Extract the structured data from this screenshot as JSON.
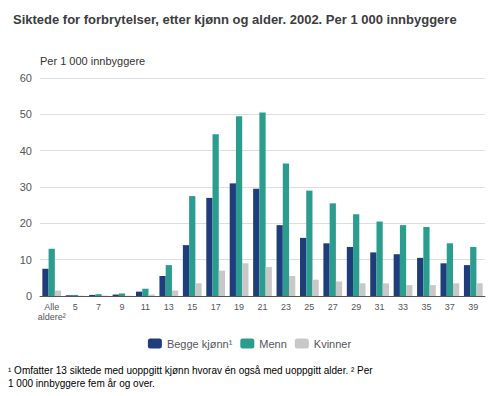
{
  "chart_data": {
    "type": "bar",
    "title": "Siktede for forbrytelser, etter kjønn og alder. 2002. Per 1 000 innbyggere",
    "ylabel": "Per 1 000 innbyggere",
    "categories": [
      "Alle\naldere²",
      "5",
      "7",
      "9",
      "11",
      "13",
      "15",
      "17",
      "19",
      "21",
      "23",
      "25",
      "27",
      "29",
      "31",
      "33",
      "35",
      "37",
      "39"
    ],
    "series": [
      {
        "name": "Begge kjønn¹",
        "color": "#1f3d7a",
        "values": [
          7.5,
          0.2,
          0.3,
          0.4,
          1.2,
          5.5,
          14.0,
          27.0,
          31.0,
          29.5,
          19.5,
          16.0,
          14.5,
          13.5,
          12.0,
          11.5,
          10.5,
          9.0,
          8.5
        ]
      },
      {
        "name": "Menn",
        "color": "#2a9d8f",
        "values": [
          13.0,
          0.3,
          0.5,
          0.7,
          2.0,
          8.5,
          27.5,
          44.5,
          49.5,
          50.5,
          36.5,
          29.0,
          25.5,
          22.5,
          20.5,
          19.5,
          19.0,
          14.5,
          13.5
        ]
      },
      {
        "name": "Kvinner",
        "color": "#c8c8c8",
        "values": [
          1.5,
          0.1,
          0.1,
          0.1,
          0.4,
          1.5,
          3.5,
          7.0,
          9.0,
          8.0,
          5.5,
          4.5,
          4.0,
          3.5,
          3.5,
          3.0,
          3.0,
          3.5,
          3.5
        ]
      }
    ],
    "ylim": [
      0,
      60
    ],
    "yticks": [
      0,
      10,
      20,
      30,
      40,
      50,
      60
    ],
    "grid": true,
    "legend": "bottom",
    "annotations": [
      "¹ Omfatter 13 siktede med uoppgitt kjønn hvorav én også med uoppgitt alder. ² Per 1 000 innbyggere fem år og over."
    ]
  }
}
